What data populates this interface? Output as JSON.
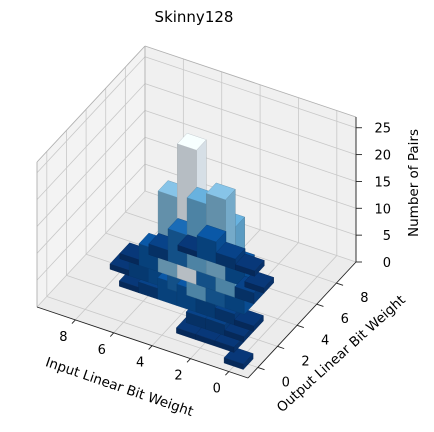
{
  "chart_data": {
    "type": "bar3d",
    "title": "Skinny128",
    "xlabel": "Input Linear Bit Weight",
    "ylabel": "Output Linear Bit Weight",
    "zlabel": "Number of Pairs",
    "xlim": [
      -1,
      10
    ],
    "ylim": [
      -1,
      10
    ],
    "zlim": [
      0,
      27
    ],
    "xticks": [
      0,
      2,
      4,
      6,
      8
    ],
    "yticks": [
      0,
      2,
      4,
      6,
      8
    ],
    "zticks": [
      0,
      5,
      10,
      15,
      20,
      25
    ],
    "xtick_labels": [
      "0",
      "2",
      "4",
      "6",
      "8"
    ],
    "ytick_labels": [
      "0",
      "2",
      "4",
      "6",
      "8"
    ],
    "ztick_labels": [
      "0",
      "5",
      "10",
      "15",
      "20",
      "25"
    ],
    "colormap": "Blues",
    "grid": true,
    "bars": [
      {
        "x": 0,
        "y": 0,
        "z": 1
      },
      {
        "x": 1,
        "y": 1,
        "z": 1
      },
      {
        "x": 1,
        "y": 2,
        "z": 1
      },
      {
        "x": 2,
        "y": 1,
        "z": 1
      },
      {
        "x": 2,
        "y": 2,
        "z": 2
      },
      {
        "x": 2,
        "y": 3,
        "z": 2
      },
      {
        "x": 3,
        "y": 2,
        "z": 2
      },
      {
        "x": 3,
        "y": 3,
        "z": 3
      },
      {
        "x": 3,
        "y": 1,
        "z": 1
      },
      {
        "x": 1,
        "y": 3,
        "z": 1
      },
      {
        "x": 2,
        "y": 4,
        "z": 4
      },
      {
        "x": 3,
        "y": 4,
        "z": 6
      },
      {
        "x": 4,
        "y": 4,
        "z": 13
      },
      {
        "x": 5,
        "y": 4,
        "z": 6
      },
      {
        "x": 4,
        "y": 3,
        "z": 4
      },
      {
        "x": 4,
        "y": 5,
        "z": 6
      },
      {
        "x": 3,
        "y": 5,
        "z": 13
      },
      {
        "x": 5,
        "y": 5,
        "z": 25
      },
      {
        "x": 4,
        "y": 6,
        "z": 15
      },
      {
        "x": 5,
        "y": 6,
        "z": 13
      },
      {
        "x": 6,
        "y": 4,
        "z": 4
      },
      {
        "x": 6,
        "y": 5,
        "z": 15
      },
      {
        "x": 5,
        "y": 3,
        "z": 4
      },
      {
        "x": 6,
        "y": 3,
        "z": 2
      },
      {
        "x": 6,
        "y": 6,
        "z": 6
      },
      {
        "x": 3,
        "y": 6,
        "z": 4
      },
      {
        "x": 4,
        "y": 7,
        "z": 2
      },
      {
        "x": 5,
        "y": 7,
        "z": 4
      },
      {
        "x": 7,
        "y": 4,
        "z": 3
      },
      {
        "x": 7,
        "y": 5,
        "z": 4
      },
      {
        "x": 2,
        "y": 5,
        "z": 2
      },
      {
        "x": 2,
        "y": 6,
        "z": 1
      },
      {
        "x": 6,
        "y": 7,
        "z": 1
      },
      {
        "x": 7,
        "y": 6,
        "z": 2
      },
      {
        "x": 7,
        "y": 3,
        "z": 1
      },
      {
        "x": 8,
        "y": 4,
        "z": 1
      },
      {
        "x": 8,
        "y": 5,
        "z": 1
      },
      {
        "x": 3,
        "y": 7,
        "z": 1
      }
    ]
  }
}
